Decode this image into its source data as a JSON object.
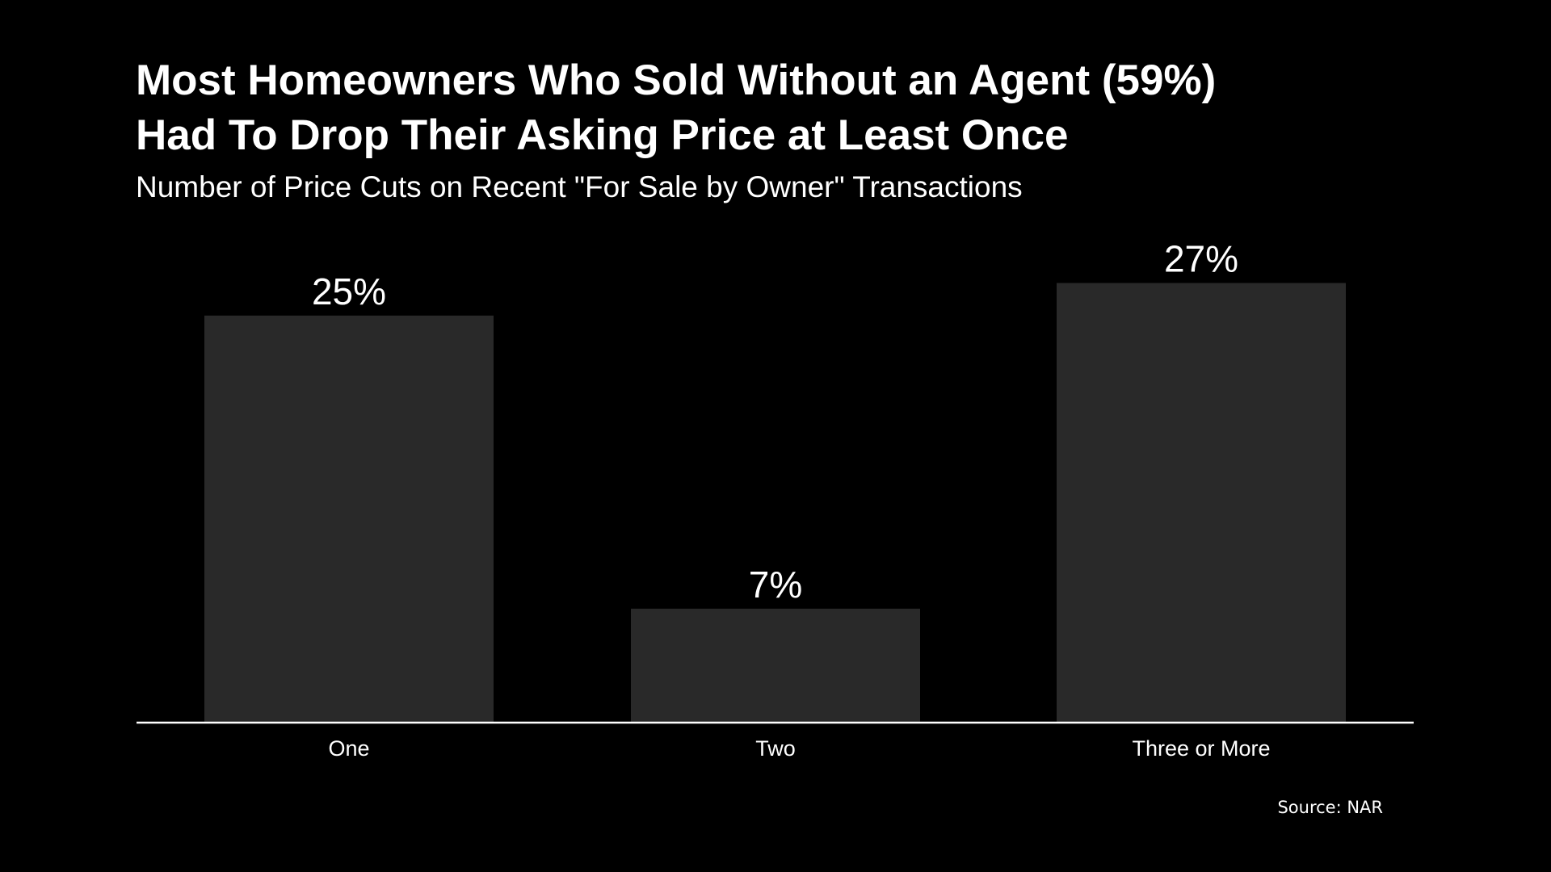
{
  "chart_data": {
    "type": "bar",
    "title_lines": [
      "Most Homeowners Who Sold Without an Agent (59%)",
      "Had To Drop Their Asking Price at Least Once"
    ],
    "subtitle": "Number of Price Cuts on Recent \"For Sale by Owner\" Transactions",
    "categories": [
      "One",
      "Two",
      "Three or More"
    ],
    "values": [
      25,
      7,
      27
    ],
    "value_labels": [
      "25%",
      "7%",
      "27%"
    ],
    "ylim": [
      0,
      30
    ],
    "grid": false,
    "legend": "none",
    "source": "Source: NAR"
  },
  "colors": {
    "background": "#000000",
    "bar": "#292929",
    "text": "#ffffff",
    "axis": "#ffffff"
  }
}
